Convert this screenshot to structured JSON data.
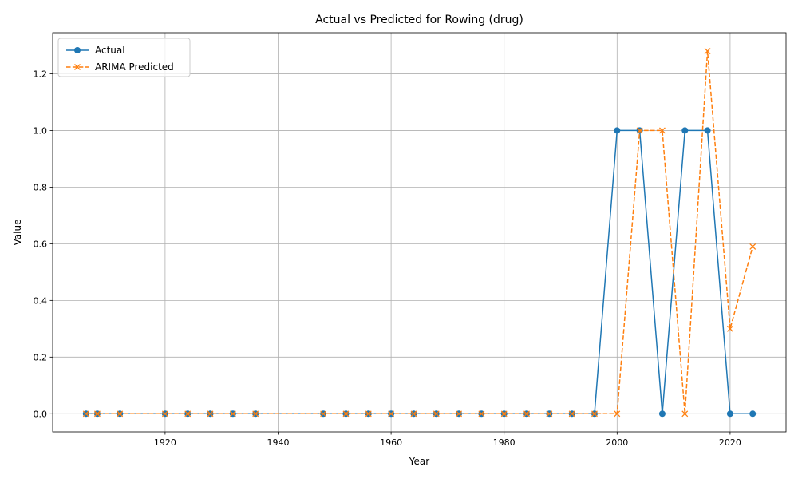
{
  "chart_data": {
    "type": "line",
    "title": "Actual vs Predicted for Rowing (drug)",
    "xlabel": "Year",
    "ylabel": "Value",
    "xlim": [
      1900.1,
      2029.9
    ],
    "ylim": [
      -0.064,
      1.345
    ],
    "x_ticks": [
      1920,
      1940,
      1960,
      1980,
      2000,
      2020
    ],
    "y_ticks": [
      0.0,
      0.2,
      0.4,
      0.6,
      0.8,
      1.0,
      1.2
    ],
    "grid": true,
    "legend_position": "upper-left",
    "x": [
      1906,
      1908,
      1912,
      1920,
      1924,
      1928,
      1932,
      1936,
      1948,
      1952,
      1956,
      1960,
      1964,
      1968,
      1972,
      1976,
      1980,
      1984,
      1988,
      1992,
      1996,
      2000,
      2004,
      2008,
      2012,
      2016,
      2020,
      2024
    ],
    "series": [
      {
        "name": "Actual",
        "color": "#1f77b4",
        "style": "solid",
        "marker": "circle",
        "values": [
          0,
          0,
          0,
          0,
          0,
          0,
          0,
          0,
          0,
          0,
          0,
          0,
          0,
          0,
          0,
          0,
          0,
          0,
          0,
          0,
          0,
          1,
          1,
          0,
          1,
          1,
          0,
          0
        ]
      },
      {
        "name": "ARIMA Predicted",
        "color": "#ff7f0e",
        "style": "dashed",
        "marker": "x",
        "values": [
          0,
          0,
          0,
          0,
          0,
          0,
          0,
          0,
          0,
          0,
          0,
          0,
          0,
          0,
          0,
          0,
          0,
          0,
          0,
          0,
          0,
          0,
          1.0,
          1.0,
          0,
          1.28,
          0.3,
          0.59
        ]
      }
    ]
  }
}
